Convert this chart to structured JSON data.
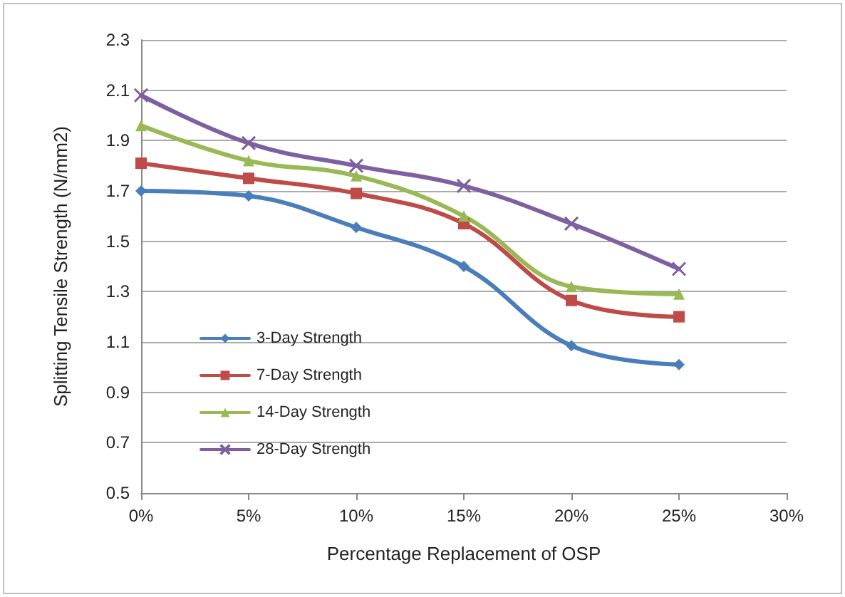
{
  "chart_data": {
    "type": "line",
    "xlabel": "Percentage Replacement of OSP",
    "ylabel": "Splitting Tensile Strength (N/mm2)",
    "x": [
      0,
      5,
      10,
      15,
      20,
      25
    ],
    "series": [
      {
        "name": "3-Day Strength",
        "color": "#4a7ebb",
        "marker": "diamond",
        "values": [
          1.7,
          1.68,
          1.555,
          1.4,
          1.085,
          1.01
        ]
      },
      {
        "name": "7-Day Strength",
        "color": "#be4b48",
        "marker": "square",
        "values": [
          1.81,
          1.75,
          1.69,
          1.57,
          1.265,
          1.2
        ]
      },
      {
        "name": "14-Day Strength",
        "color": "#98b954",
        "marker": "triangle",
        "values": [
          1.96,
          1.82,
          1.76,
          1.6,
          1.32,
          1.29
        ]
      },
      {
        "name": "28-Day Strength",
        "color": "#7d60a0",
        "marker": "cross",
        "values": [
          2.08,
          1.89,
          1.8,
          1.72,
          1.57,
          1.39
        ]
      }
    ],
    "xlim": [
      0,
      30
    ],
    "xticks": [
      {
        "value": 0,
        "label": "0%"
      },
      {
        "value": 5,
        "label": "5%"
      },
      {
        "value": 10,
        "label": "10%"
      },
      {
        "value": 15,
        "label": "15%"
      },
      {
        "value": 20,
        "label": "20%"
      },
      {
        "value": 25,
        "label": "25%"
      },
      {
        "value": 30,
        "label": "30%"
      }
    ],
    "ylim": [
      0.5,
      2.3
    ],
    "yticks": [
      0.5,
      0.7,
      0.9,
      1.1,
      1.3,
      1.5,
      1.7,
      1.9,
      2.1,
      2.3
    ],
    "grid": "y",
    "legend": "bottom left",
    "line_style": "solid"
  }
}
